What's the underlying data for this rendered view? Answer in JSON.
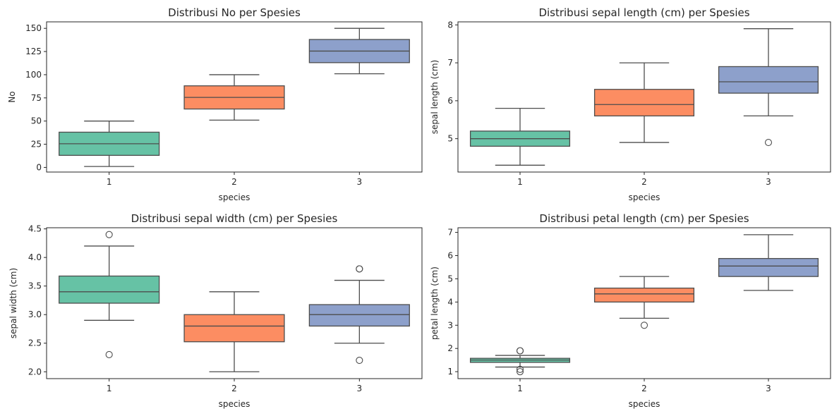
{
  "chart_data": [
    {
      "type": "box",
      "title": "Distribusi No per Spesies",
      "xlabel": "species",
      "ylabel": "No",
      "categories": [
        "1",
        "2",
        "3"
      ],
      "ylim": [
        -5,
        157
      ],
      "yticks": [
        0,
        25,
        50,
        75,
        100,
        125,
        150
      ],
      "yticklabels": [
        "0",
        "25",
        "50",
        "75",
        "100",
        "125",
        "150"
      ],
      "boxes": [
        {
          "category": "1",
          "whisker_low": 1,
          "q1": 13,
          "median": 25.5,
          "q3": 38,
          "whisker_high": 50,
          "outliers": []
        },
        {
          "category": "2",
          "whisker_low": 51,
          "q1": 63,
          "median": 75.5,
          "q3": 88,
          "whisker_high": 100,
          "outliers": []
        },
        {
          "category": "3",
          "whisker_low": 101,
          "q1": 113,
          "median": 125.5,
          "q3": 138,
          "whisker_high": 150,
          "outliers": []
        }
      ]
    },
    {
      "type": "box",
      "title": "Distribusi sepal length (cm) per Spesies",
      "xlabel": "species",
      "ylabel": "sepal length (cm)",
      "categories": [
        "1",
        "2",
        "3"
      ],
      "ylim": [
        4.12,
        8.08
      ],
      "yticks": [
        5,
        6,
        7,
        8
      ],
      "yticklabels": [
        "5",
        "6",
        "7",
        "8"
      ],
      "boxes": [
        {
          "category": "1",
          "whisker_low": 4.3,
          "q1": 4.8,
          "median": 5.0,
          "q3": 5.2,
          "whisker_high": 5.8,
          "outliers": []
        },
        {
          "category": "2",
          "whisker_low": 4.9,
          "q1": 5.6,
          "median": 5.9,
          "q3": 6.3,
          "whisker_high": 7.0,
          "outliers": []
        },
        {
          "category": "3",
          "whisker_low": 5.6,
          "q1": 6.2,
          "median": 6.5,
          "q3": 6.9,
          "whisker_high": 7.9,
          "outliers": [
            4.9
          ]
        }
      ]
    },
    {
      "type": "box",
      "title": "Distribusi sepal width (cm) per Spesies",
      "xlabel": "species",
      "ylabel": "sepal width (cm)",
      "categories": [
        "1",
        "2",
        "3"
      ],
      "ylim": [
        1.88,
        4.52
      ],
      "yticks": [
        2.0,
        2.5,
        3.0,
        3.5,
        4.0,
        4.5
      ],
      "yticklabels": [
        "2.0",
        "2.5",
        "3.0",
        "3.5",
        "4.0",
        "4.5"
      ],
      "boxes": [
        {
          "category": "1",
          "whisker_low": 2.9,
          "q1": 3.2,
          "median": 3.4,
          "q3": 3.675,
          "whisker_high": 4.2,
          "outliers": [
            4.4,
            2.3
          ]
        },
        {
          "category": "2",
          "whisker_low": 2.0,
          "q1": 2.525,
          "median": 2.8,
          "q3": 3.0,
          "whisker_high": 3.4,
          "outliers": []
        },
        {
          "category": "3",
          "whisker_low": 2.5,
          "q1": 2.8,
          "median": 3.0,
          "q3": 3.175,
          "whisker_high": 3.6,
          "outliers": [
            3.8,
            3.8,
            2.2
          ]
        }
      ]
    },
    {
      "type": "box",
      "title": "Distribusi petal length (cm) per Spesies",
      "xlabel": "species",
      "ylabel": "petal length (cm)",
      "categories": [
        "1",
        "2",
        "3"
      ],
      "ylim": [
        0.7,
        7.2
      ],
      "yticks": [
        1,
        2,
        3,
        4,
        5,
        6,
        7
      ],
      "yticklabels": [
        "1",
        "2",
        "3",
        "4",
        "5",
        "6",
        "7"
      ],
      "boxes": [
        {
          "category": "1",
          "whisker_low": 1.2,
          "q1": 1.4,
          "median": 1.5,
          "q3": 1.575,
          "whisker_high": 1.7,
          "outliers": [
            1.9,
            1.9,
            1.1,
            1.0
          ]
        },
        {
          "category": "2",
          "whisker_low": 3.3,
          "q1": 4.0,
          "median": 4.35,
          "q3": 4.6,
          "whisker_high": 5.1,
          "outliers": [
            3.0
          ]
        },
        {
          "category": "3",
          "whisker_low": 4.5,
          "q1": 5.1,
          "median": 5.55,
          "q3": 5.875,
          "whisker_high": 6.9,
          "outliers": []
        }
      ]
    }
  ],
  "colors": {
    "category_1": "#66c2a5",
    "category_2": "#fc8d62",
    "category_3": "#8da0cb",
    "line": "#4d4d4d"
  }
}
